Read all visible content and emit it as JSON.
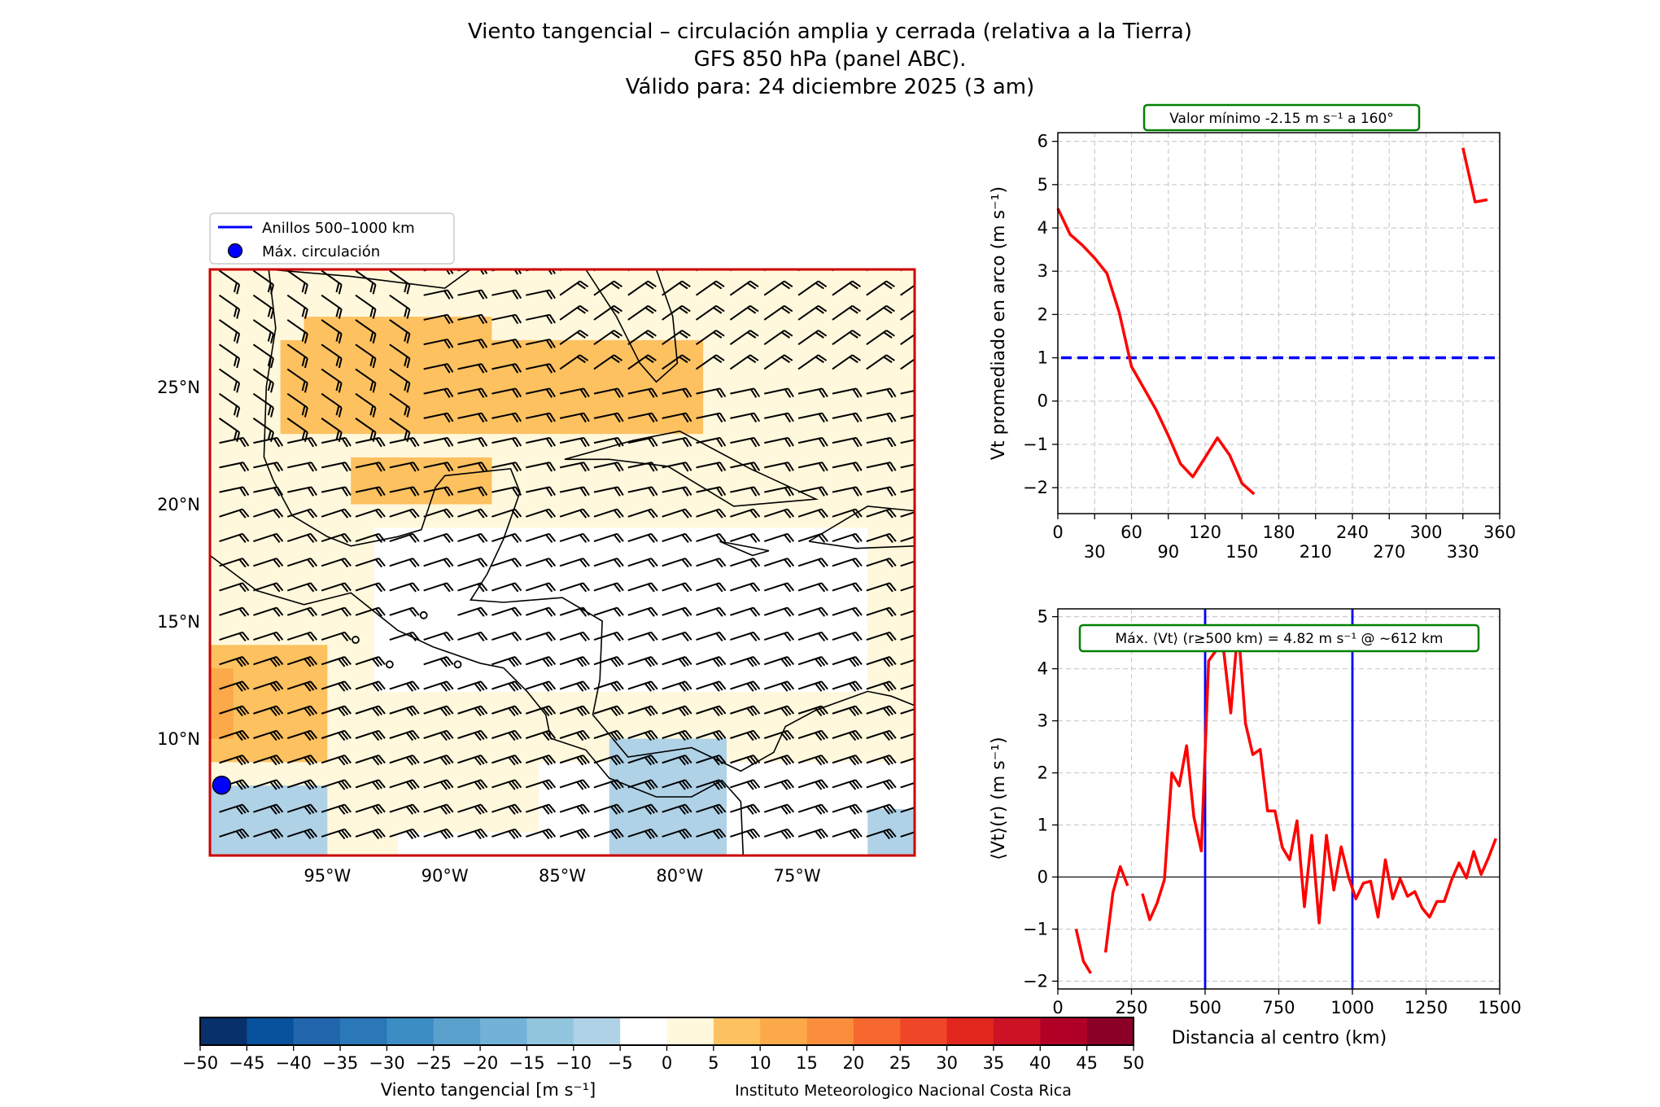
{
  "figure": {
    "title_lines": [
      "Viento tangencial – circulación amplia y cerrada (relativa a la Tierra)",
      "GFS 850 hPa (panel ABC).",
      "Válido para: 24 diciembre 2025 (3 am)"
    ],
    "credit": "Instituto Meteorologico Nacional Costa Rica",
    "colors": {
      "curve": "#ff0000",
      "threshold": "#0000ff",
      "ring": "#0000ff",
      "annotation_border": "#008000",
      "map_frame": "#cc0000"
    }
  },
  "chart_data": [
    {
      "type": "heatmap",
      "name": "map",
      "description": "Tangential wind shading with wind barbs over Gulf of Mexico / Caribbean",
      "xlabel": "",
      "ylabel": "",
      "x_ticks": [
        "95°W",
        "90°W",
        "85°W",
        "80°W",
        "75°W"
      ],
      "x_tick_values": [
        -95,
        -90,
        -85,
        -80,
        -75
      ],
      "y_ticks": [
        "25°N",
        "20°N",
        "15°N",
        "10°N"
      ],
      "y_tick_values": [
        25,
        20,
        15,
        10
      ],
      "xlim": [
        -100,
        -70
      ],
      "ylim": [
        5,
        30
      ],
      "legend": {
        "placement": "upper-left",
        "entries": [
          {
            "label": "Anillos 500–1000 km",
            "marker": "line",
            "color": "#0000ff"
          },
          {
            "label": "Máx. circulación",
            "marker": "circle",
            "color": "#0000ff"
          }
        ]
      },
      "max_circulation_point": {
        "lon": -99.5,
        "lat": 8.0
      },
      "colorbar": {
        "label": "Viento tangencial [m s⁻¹]",
        "ticks": [
          -50,
          -45,
          -40,
          -35,
          -30,
          -25,
          -20,
          -15,
          -10,
          -5,
          0,
          5,
          10,
          15,
          20,
          25,
          30,
          35,
          40,
          45,
          50
        ],
        "tick_labels": [
          "−50",
          "−45",
          "−40",
          "−35",
          "−30",
          "−25",
          "−20",
          "−15",
          "−10",
          "−5",
          "0",
          "5",
          "10",
          "15",
          "20",
          "25",
          "30",
          "35",
          "40",
          "45",
          "50"
        ],
        "colors": [
          "#08306b",
          "#08519c",
          "#2166ac",
          "#2b78b8",
          "#3c8dc3",
          "#5aa0cd",
          "#73b2d8",
          "#92c5de",
          "#b0d2e7",
          "#ffffff",
          "#fff8dc",
          "#fdc160",
          "#fca94a",
          "#fb8e3c",
          "#f7682f",
          "#ef4628",
          "#e1261d",
          "#cc1326",
          "#b10026",
          "#8b0026"
        ]
      }
    },
    {
      "type": "line",
      "name": "azimuth-profile",
      "title": "",
      "annotation": "Valor mínimo -2.15 m s⁻¹ a 160°",
      "xlabel": "",
      "ylabel": "Vt promediado en arco (m s⁻¹)",
      "xlim": [
        0,
        360
      ],
      "ylim": [
        -2.6,
        6.2
      ],
      "x_ticks": [
        0,
        30,
        60,
        90,
        120,
        150,
        180,
        210,
        240,
        270,
        300,
        330,
        360
      ],
      "y_ticks": [
        -2,
        -1,
        0,
        1,
        2,
        3,
        4,
        5,
        6
      ],
      "y_tick_labels": [
        "−2",
        "−1",
        "0",
        "1",
        "2",
        "3",
        "4",
        "5",
        "6"
      ],
      "grid": true,
      "threshold_line": {
        "y": 1.0,
        "style": "dashed",
        "color": "#0000ff"
      },
      "series": [
        {
          "name": "Vt",
          "color": "#ff0000",
          "x": [
            0,
            10,
            20,
            30,
            40,
            50,
            60,
            70,
            80,
            90,
            100,
            110,
            120,
            130,
            140,
            150,
            160,
            170,
            180,
            190,
            200,
            210,
            220,
            230,
            240,
            250,
            260,
            270,
            280,
            290,
            300,
            310,
            320,
            330,
            340,
            350
          ],
          "y": [
            4.45,
            3.85,
            3.6,
            3.3,
            2.95,
            2.05,
            0.8,
            0.3,
            -0.2,
            -0.8,
            -1.45,
            -1.75,
            -1.3,
            -0.85,
            -1.25,
            -1.9,
            -2.15,
            null,
            null,
            null,
            null,
            null,
            null,
            null,
            null,
            null,
            null,
            null,
            null,
            null,
            null,
            null,
            null,
            5.85,
            4.6,
            4.65
          ]
        }
      ]
    },
    {
      "type": "line",
      "name": "radial-profile",
      "title": "",
      "annotation": "Máx. ⟨Vt⟩ (r≥500 km) = 4.82 m s⁻¹ @ ~612 km",
      "xlabel": "Distancia al centro (km)",
      "ylabel": "⟨Vt⟩(r)  (m s⁻¹)",
      "xlim": [
        0,
        1500
      ],
      "ylim": [
        -2.15,
        5.15
      ],
      "x_ticks": [
        0,
        250,
        500,
        750,
        1000,
        1250,
        1500
      ],
      "y_ticks": [
        -2,
        -1,
        0,
        1,
        2,
        3,
        4,
        5
      ],
      "y_tick_labels": [
        "−2",
        "−1",
        "0",
        "1",
        "2",
        "3",
        "4",
        "5"
      ],
      "grid": true,
      "vertical_lines": [
        500,
        1000
      ],
      "zero_line": 0,
      "series": [
        {
          "name": "Vt(r)",
          "color": "#ff0000",
          "x": [
            62,
            87,
            112,
            137,
            162,
            187,
            212,
            237,
            262,
            287,
            312,
            337,
            362,
            387,
            412,
            437,
            462,
            487,
            512,
            537,
            562,
            587,
            612,
            637,
            662,
            687,
            712,
            737,
            762,
            787,
            812,
            837,
            862,
            887,
            912,
            937,
            962,
            987,
            1012,
            1037,
            1062,
            1087,
            1112,
            1137,
            1162,
            1187,
            1212,
            1237,
            1262,
            1287,
            1312,
            1337,
            1362,
            1387,
            1412,
            1437,
            1462,
            1487
          ],
          "y": [
            -1.0,
            -1.62,
            -1.85,
            null,
            -1.45,
            -0.3,
            0.2,
            -0.17,
            null,
            -0.32,
            -0.82,
            -0.5,
            -0.05,
            2.0,
            1.75,
            2.52,
            1.15,
            0.5,
            4.15,
            4.35,
            4.4,
            3.15,
            4.82,
            2.95,
            2.35,
            2.45,
            1.27,
            1.27,
            0.57,
            0.33,
            1.08,
            -0.57,
            0.8,
            -0.88,
            0.8,
            -0.25,
            0.58,
            0.0,
            -0.42,
            -0.12,
            -0.08,
            -0.77,
            0.33,
            -0.42,
            -0.03,
            -0.37,
            -0.28,
            -0.6,
            -0.77,
            -0.47,
            -0.47,
            -0.05,
            0.27,
            -0.02,
            0.49,
            0.05,
            0.37,
            0.74
          ]
        }
      ]
    }
  ]
}
